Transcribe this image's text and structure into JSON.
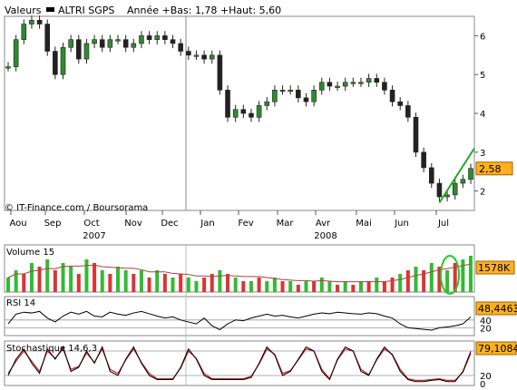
{
  "header": {
    "legend_label": "Valeurs",
    "series_name": "ALTRI SGPS",
    "range_text": "Année +Bas: 1,78 +Haut: 5,60"
  },
  "credit": "© IT-Finance.com / Boursorama",
  "colors": {
    "up": "#2e8b2e",
    "down": "#222222",
    "trendline": "#22aa22",
    "badge": "#ffb020",
    "volume_up": "#33bb33",
    "volume_down": "#dd3333",
    "volume_avg": "#b04040",
    "rsi_line": "#000000",
    "stoch_k": "#000000",
    "stoch_d": "#cc2222",
    "annotation_circle": "#22cc22"
  },
  "chart_data": [
    {
      "panel": "price",
      "type": "candlestick",
      "x_ticks": [
        "Aou",
        "Sep",
        "Oct",
        "Nov",
        "Dec",
        "Jan",
        "Fev",
        "Mar",
        "Avr",
        "Mai",
        "Jun",
        "Jul"
      ],
      "year_labels": [
        "2007",
        "2008"
      ],
      "y_ticks": [
        2,
        3,
        4,
        5,
        6
      ],
      "ylim": [
        1.5,
        6.5
      ],
      "last_value_label": "2,58",
      "last_value": 2.58,
      "low": 1.78,
      "high": 5.6,
      "close_path": [
        [
          0,
          5.2
        ],
        [
          1,
          5.9
        ],
        [
          2,
          6.3
        ],
        [
          3,
          6.4
        ],
        [
          4,
          6.3
        ],
        [
          5,
          5.6
        ],
        [
          6,
          5.0
        ],
        [
          7,
          5.7
        ],
        [
          8,
          5.9
        ],
        [
          9,
          5.4
        ],
        [
          10,
          5.8
        ],
        [
          11,
          5.9
        ],
        [
          12,
          5.7
        ],
        [
          13,
          5.9
        ],
        [
          14,
          5.9
        ],
        [
          15,
          5.7
        ],
        [
          16,
          5.8
        ],
        [
          17,
          6.0
        ],
        [
          18,
          5.9
        ],
        [
          19,
          6.0
        ],
        [
          20,
          5.9
        ],
        [
          21,
          5.8
        ],
        [
          22,
          5.6
        ],
        [
          23,
          5.5
        ],
        [
          24,
          5.5
        ],
        [
          25,
          5.4
        ],
        [
          26,
          5.5
        ],
        [
          27,
          4.6
        ],
        [
          28,
          3.9
        ],
        [
          29,
          4.1
        ],
        [
          30,
          4.0
        ],
        [
          31,
          3.9
        ],
        [
          32,
          4.2
        ],
        [
          33,
          4.3
        ],
        [
          34,
          4.6
        ],
        [
          35,
          4.6
        ],
        [
          36,
          4.6
        ],
        [
          37,
          4.4
        ],
        [
          38,
          4.3
        ],
        [
          39,
          4.6
        ],
        [
          40,
          4.8
        ],
        [
          41,
          4.7
        ],
        [
          42,
          4.7
        ],
        [
          43,
          4.8
        ],
        [
          44,
          4.8
        ],
        [
          45,
          4.8
        ],
        [
          46,
          4.9
        ],
        [
          47,
          4.8
        ],
        [
          48,
          4.6
        ],
        [
          49,
          4.3
        ],
        [
          50,
          4.2
        ],
        [
          51,
          3.9
        ],
        [
          52,
          3.0
        ],
        [
          53,
          2.6
        ],
        [
          54,
          2.2
        ],
        [
          55,
          1.85
        ],
        [
          56,
          1.9
        ],
        [
          57,
          2.2
        ],
        [
          58,
          2.3
        ],
        [
          59,
          2.58
        ]
      ],
      "trendline": [
        [
          55,
          1.7
        ],
        [
          64,
          3.1
        ]
      ]
    },
    {
      "panel": "volume",
      "type": "bar",
      "label": "Volume 15",
      "last_value_label": "1578K",
      "values": [
        4,
        6,
        5,
        8,
        7,
        9,
        6,
        8,
        7,
        5,
        9,
        8,
        6,
        5,
        7,
        6,
        5,
        6,
        4,
        6,
        5,
        4,
        5,
        4,
        3,
        4,
        5,
        6,
        5,
        4,
        3,
        3,
        4,
        3,
        4,
        3,
        3,
        2,
        3,
        3,
        4,
        3,
        2,
        3,
        2,
        3,
        3,
        4,
        3,
        4,
        5,
        6,
        7,
        6,
        8,
        7,
        6,
        8,
        9,
        10
      ],
      "up": [
        1,
        1,
        0,
        1,
        0,
        1,
        0,
        1,
        1,
        0,
        1,
        0,
        1,
        0,
        1,
        1,
        0,
        1,
        0,
        1,
        0,
        1,
        0,
        1,
        1,
        0,
        0,
        1,
        0,
        1,
        0,
        1,
        0,
        1,
        1,
        0,
        1,
        0,
        1,
        0,
        1,
        1,
        0,
        1,
        0,
        1,
        0,
        1,
        0,
        0,
        1,
        0,
        1,
        0,
        1,
        0,
        1,
        0,
        1,
        1
      ],
      "ylim": [
        0,
        12
      ]
    },
    {
      "panel": "rsi",
      "type": "line",
      "label": "RSI 14",
      "last_value_label": "48,4463",
      "y_ticks": [
        20,
        40
      ],
      "y_tick_labels": [
        "20",
        "40"
      ],
      "ylim": [
        0,
        100
      ],
      "values": [
        30,
        55,
        60,
        58,
        62,
        45,
        35,
        50,
        60,
        55,
        62,
        50,
        48,
        60,
        55,
        52,
        58,
        62,
        56,
        50,
        45,
        48,
        40,
        35,
        30,
        45,
        25,
        15,
        30,
        40,
        38,
        45,
        50,
        55,
        50,
        52,
        48,
        45,
        50,
        55,
        58,
        56,
        60,
        58,
        56,
        55,
        58,
        56,
        50,
        45,
        30,
        20,
        18,
        16,
        14,
        20,
        22,
        25,
        30,
        48
      ],
      "guides": [
        20,
        40
      ]
    },
    {
      "panel": "stochastic",
      "type": "line",
      "label": "Stochastique 14,6,3",
      "last_value_label": "79,1084",
      "y_ticks": [
        0,
        20,
        80
      ],
      "y_tick_labels": [
        "0",
        "20",
        "80"
      ],
      "ylim": [
        0,
        100
      ],
      "k": [
        20,
        60,
        85,
        50,
        25,
        85,
        60,
        90,
        30,
        40,
        80,
        50,
        90,
        30,
        20,
        60,
        90,
        50,
        20,
        10,
        10,
        10,
        40,
        85,
        60,
        20,
        10,
        10,
        10,
        10,
        10,
        15,
        50,
        90,
        70,
        20,
        30,
        60,
        90,
        80,
        30,
        10,
        60,
        90,
        80,
        30,
        20,
        60,
        90,
        70,
        30,
        10,
        5,
        5,
        8,
        10,
        5,
        5,
        30,
        79
      ],
      "d": [
        25,
        55,
        80,
        55,
        30,
        80,
        62,
        85,
        35,
        42,
        75,
        52,
        85,
        35,
        25,
        58,
        85,
        52,
        25,
        12,
        12,
        12,
        38,
        80,
        62,
        25,
        12,
        12,
        12,
        12,
        12,
        18,
        48,
        85,
        72,
        25,
        32,
        58,
        85,
        80,
        35,
        12,
        58,
        85,
        80,
        35,
        22,
        58,
        85,
        72,
        35,
        12,
        8,
        8,
        10,
        12,
        8,
        8,
        28,
        74
      ],
      "guides": [
        20,
        80
      ]
    }
  ]
}
